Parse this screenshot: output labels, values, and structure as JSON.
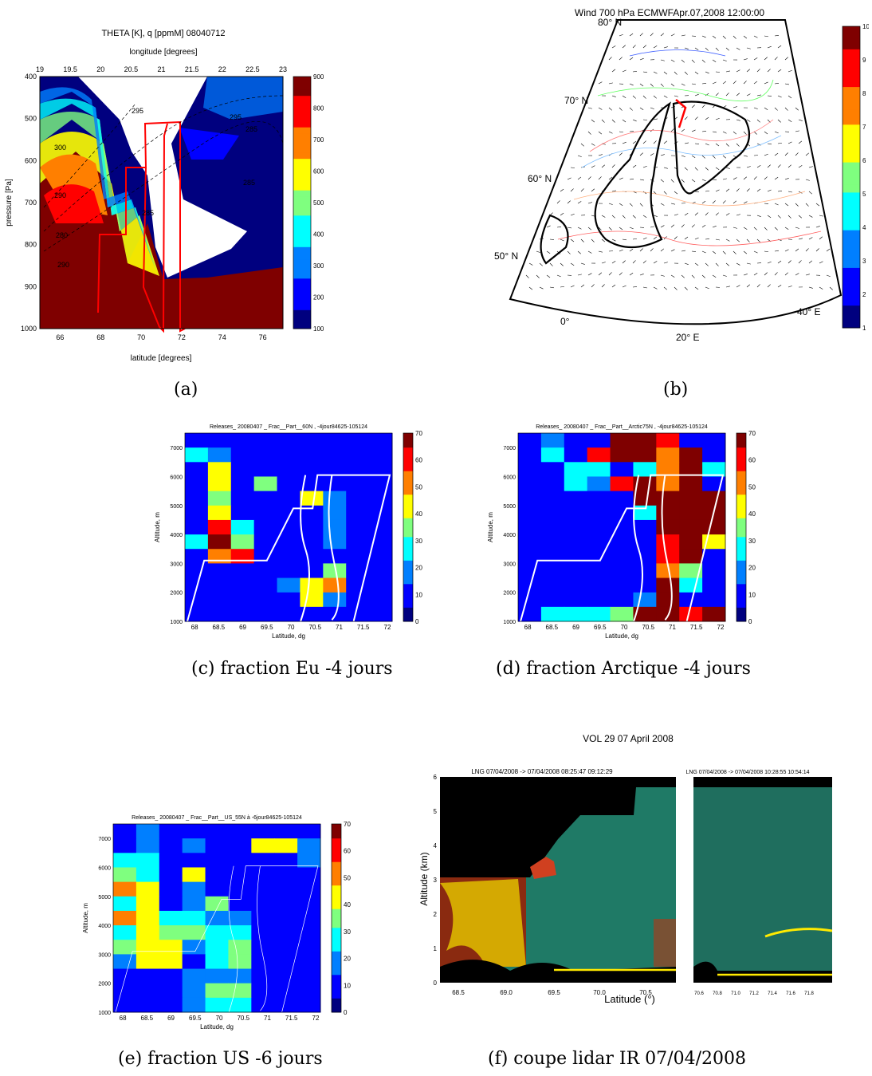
{
  "captions": {
    "a": "(a)",
    "b": "(b)",
    "c": "(c) fraction Eu -4 jours",
    "d": "(d) fraction Arctique -4 jours",
    "e": "(e) fraction US -6 jours",
    "f": "(f) coupe lidar IR 07/04/2008"
  },
  "colors": {
    "jet": [
      "#00007f",
      "#0000ff",
      "#007fff",
      "#00ffff",
      "#7fff7f",
      "#ffff00",
      "#ff7f00",
      "#ff0000",
      "#7f0000"
    ],
    "flight_track_a": "#ff0000",
    "track_white": "#ffffff",
    "frame": "#000000"
  },
  "chart_data": [
    {
      "id": "a",
      "type": "heatmap",
      "title": "THETA [K], q [ppmM]       08040712",
      "x2label": "longitude [degrees]",
      "xlabel": "latitude [degrees]",
      "ylabel": "pressure [Pa]",
      "x_ticks": [
        "66",
        "68",
        "70",
        "72",
        "74",
        "76"
      ],
      "x2_ticks": [
        "19",
        "19.5",
        "20",
        "20.5",
        "21",
        "21.5",
        "22",
        "22.5",
        "23"
      ],
      "y_ticks": [
        "400",
        "500",
        "600",
        "700",
        "800",
        "900",
        "1000"
      ],
      "xlim": [
        65,
        77
      ],
      "ylim": [
        1000,
        400
      ],
      "colorbar_ticks": [
        "100",
        "200",
        "300",
        "400",
        "500",
        "600",
        "700",
        "800",
        "900"
      ],
      "contour_labels": [
        "295",
        "300",
        "295",
        "290",
        "285",
        "280",
        "285",
        "290",
        "285"
      ]
    },
    {
      "id": "b",
      "type": "map",
      "title": "Wind 700 hPa ECMWFApr.07,2008 12:00:00",
      "lat_labels": [
        "50° N",
        "60° N",
        "70° N",
        "80° N"
      ],
      "lon_labels": [
        "0°",
        "20° E",
        "40° E"
      ],
      "colorbar_ticks": [
        "1",
        "2",
        "3",
        "4",
        "5",
        "6",
        "7",
        "8",
        "9",
        "10"
      ]
    },
    {
      "id": "c",
      "type": "heatmap",
      "title": "Releases_ 20080407 _ Frac__Part__60N , -4jour84625-105124",
      "xlabel": "Latitude, dg",
      "ylabel": "Altitude, m",
      "x_ticks": [
        "68",
        "68.5",
        "69",
        "69.5",
        "70",
        "70.5",
        "71",
        "71.5",
        "72"
      ],
      "y_ticks": [
        "1000",
        "2000",
        "3000",
        "4000",
        "5000",
        "6000",
        "7000"
      ],
      "xlim": [
        67.8,
        72.1
      ],
      "ylim": [
        1000,
        7500
      ],
      "colorbar_ticks": [
        "0",
        "10",
        "20",
        "30",
        "40",
        "50",
        "60",
        "70"
      ],
      "cell_values": [
        [
          5,
          5,
          5,
          5,
          5,
          5,
          5,
          5,
          5
        ],
        [
          28,
          15,
          5,
          5,
          5,
          5,
          5,
          5,
          5
        ],
        [
          5,
          48,
          5,
          5,
          5,
          5,
          5,
          5,
          5
        ],
        [
          5,
          40,
          5,
          38,
          10,
          5,
          5,
          5,
          5
        ],
        [
          5,
          36,
          10,
          10,
          12,
          44,
          15,
          5,
          5
        ],
        [
          5,
          40,
          12,
          5,
          8,
          8,
          20,
          5,
          5
        ],
        [
          5,
          60,
          25,
          5,
          8,
          5,
          20,
          5,
          5
        ],
        [
          30,
          68,
          38,
          5,
          5,
          5,
          18,
          5,
          5
        ],
        [
          5,
          55,
          58,
          8,
          5,
          5,
          5,
          5,
          5
        ],
        [
          5,
          5,
          8,
          5,
          8,
          5,
          38,
          5,
          5
        ],
        [
          5,
          5,
          5,
          5,
          15,
          40,
          50,
          5,
          5
        ],
        [
          5,
          5,
          5,
          5,
          10,
          40,
          20,
          5,
          5
        ],
        [
          5,
          5,
          5,
          5,
          5,
          10,
          5,
          5,
          5
        ]
      ]
    },
    {
      "id": "d",
      "type": "heatmap",
      "title": "Releases_ 20080407 _ Frac__Part__Arctic75N , -4jour84625-105124",
      "xlabel": "Latitude, dg",
      "ylabel": "Altitude, m",
      "x_ticks": [
        "68",
        "68.5",
        "69",
        "69.5",
        "70",
        "70.5",
        "71",
        "71.5",
        "72"
      ],
      "y_ticks": [
        "1000",
        "2000",
        "3000",
        "4000",
        "5000",
        "6000",
        "7000"
      ],
      "xlim": [
        67.8,
        72.1
      ],
      "ylim": [
        1000,
        7500
      ],
      "colorbar_ticks": [
        "0",
        "10",
        "20",
        "30",
        "40",
        "50",
        "60",
        "70"
      ],
      "cell_values": [
        [
          5,
          20,
          5,
          5,
          70,
          70,
          60,
          10,
          5
        ],
        [
          5,
          25,
          5,
          65,
          70,
          70,
          55,
          70,
          5
        ],
        [
          5,
          10,
          28,
          30,
          12,
          30,
          55,
          70,
          28
        ],
        [
          5,
          10,
          28,
          18,
          62,
          70,
          55,
          70,
          5
        ],
        [
          5,
          5,
          5,
          5,
          5,
          70,
          70,
          70,
          70
        ],
        [
          5,
          5,
          5,
          5,
          5,
          30,
          70,
          70,
          70
        ],
        [
          5,
          5,
          5,
          5,
          5,
          5,
          70,
          70,
          70
        ],
        [
          5,
          5,
          5,
          5,
          5,
          5,
          60,
          70,
          45
        ],
        [
          5,
          5,
          5,
          5,
          5,
          5,
          60,
          70,
          5
        ],
        [
          5,
          5,
          5,
          5,
          5,
          5,
          50,
          35,
          5
        ],
        [
          5,
          5,
          5,
          5,
          5,
          5,
          70,
          25,
          5
        ],
        [
          5,
          5,
          8,
          5,
          5,
          15,
          70,
          10,
          5
        ],
        [
          5,
          28,
          28,
          30,
          35,
          70,
          70,
          65,
          70
        ]
      ]
    },
    {
      "id": "e",
      "type": "heatmap",
      "title": "Releases_ 20080407 _ Frac__Part__US_55N à -6jour84625-105124",
      "xlabel": "Latitude, dg",
      "ylabel": "Altitude, m",
      "x_ticks": [
        "68",
        "68.5",
        "69",
        "69.5",
        "70",
        "70.5",
        "71",
        "71.5",
        "72"
      ],
      "y_ticks": [
        "1000",
        "2000",
        "3000",
        "4000",
        "5000",
        "6000",
        "7000"
      ],
      "xlim": [
        67.8,
        72.1
      ],
      "ylim": [
        1000,
        7500
      ],
      "colorbar_ticks": [
        "0",
        "10",
        "20",
        "30",
        "40",
        "50",
        "60",
        "70"
      ],
      "cell_values": [
        [
          10,
          15,
          5,
          8,
          5,
          5,
          5,
          5,
          5
        ],
        [
          12,
          20,
          8,
          20,
          5,
          5,
          40,
          45,
          20
        ],
        [
          30,
          30,
          10,
          10,
          5,
          5,
          10,
          10,
          20
        ],
        [
          35,
          30,
          5,
          45,
          10,
          5,
          5,
          5,
          5
        ],
        [
          55,
          45,
          8,
          20,
          5,
          5,
          5,
          5,
          5
        ],
        [
          25,
          40,
          5,
          20,
          35,
          5,
          5,
          5,
          5
        ],
        [
          50,
          40,
          25,
          25,
          15,
          15,
          5,
          5,
          5
        ],
        [
          30,
          45,
          35,
          35,
          25,
          25,
          5,
          5,
          5
        ],
        [
          35,
          45,
          40,
          15,
          30,
          35,
          5,
          5,
          5
        ],
        [
          20,
          40,
          45,
          10,
          25,
          35,
          5,
          5,
          5
        ],
        [
          5,
          10,
          10,
          15,
          15,
          15,
          5,
          5,
          5
        ],
        [
          5,
          5,
          5,
          15,
          35,
          35,
          5,
          5,
          5
        ],
        [
          5,
          8,
          5,
          15,
          25,
          25,
          5,
          5,
          5
        ]
      ]
    },
    {
      "id": "f",
      "type": "heatmap",
      "title": "VOL 29   07 April 2008",
      "subtitle_left": "LNG 07/04/2008 -> 07/04/2008 08:25:47 09:12:29",
      "subtitle_right": "LNG 07/04/2008 -> 07/04/2008 10:28:55 10:54:14",
      "xlabel": "Latitude  (°)",
      "ylabel": "Altitude (km)",
      "x_ticks": [
        "68.5",
        "69.0",
        "69.5",
        "70.0",
        "70.5"
      ],
      "x_ticks_right": [
        "70.6",
        "70.8",
        "71.0",
        "71.2",
        "71.4",
        "71.6",
        "71.8"
      ],
      "y_ticks": [
        "0",
        "1",
        "2",
        "3",
        "4",
        "5",
        "6"
      ],
      "ylim": [
        0,
        6
      ]
    }
  ]
}
